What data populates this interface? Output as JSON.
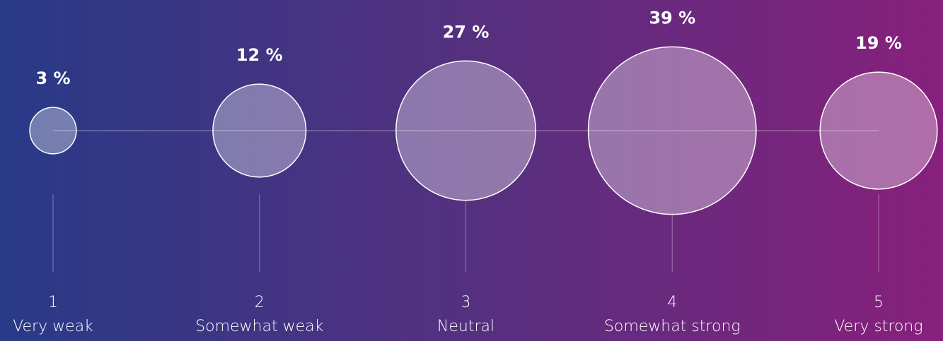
{
  "chart_data": {
    "type": "bubble",
    "categories": [
      "1",
      "2",
      "3",
      "4",
      "5"
    ],
    "category_labels": [
      "Very weak",
      "Somewhat weak",
      "Neutral",
      "Somewhat strong",
      "Very strong"
    ],
    "values": [
      3,
      12,
      27,
      39,
      19
    ],
    "value_labels": [
      "3 %",
      "12 %",
      "27 %",
      "39 %",
      "19 %"
    ],
    "color": "#ffffff"
  }
}
